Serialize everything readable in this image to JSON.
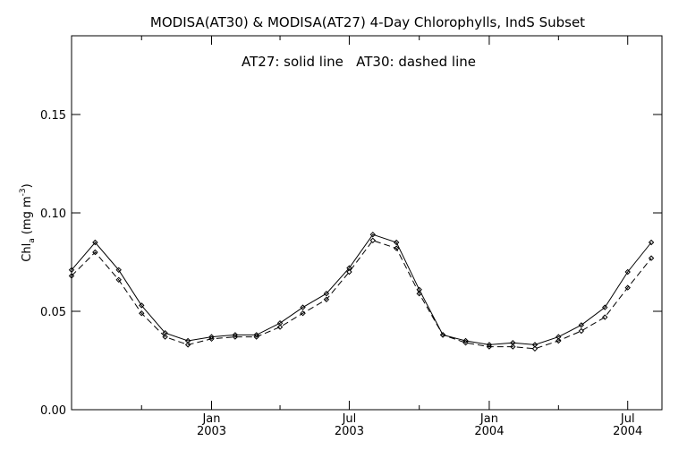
{
  "chart_data": {
    "type": "line",
    "title": "MODISA(AT30) & MODISA(AT27) 4-Day Chlorophylls, IndS Subset",
    "annotation": "AT27: solid line   AT30: dashed line",
    "ylabel": {
      "main": "Chl",
      "sub": "a",
      "unit_open": " (mg m",
      "sup": "-3",
      "unit_close": ")"
    },
    "ylim": [
      0.0,
      0.19
    ],
    "ytick_values": [
      0.0,
      0.05,
      0.1,
      0.15
    ],
    "ytick_labels": [
      "0.00",
      "0.05",
      "0.10",
      "0.15"
    ],
    "xlim": [
      "2002-07-01",
      "2004-08-15"
    ],
    "xticks": [
      {
        "date": "2003-01-01",
        "month": "Jan",
        "year": "2003"
      },
      {
        "date": "2003-07-01",
        "month": "Jul",
        "year": "2003"
      },
      {
        "date": "2004-01-01",
        "month": "Jan",
        "year": "2004"
      },
      {
        "date": "2004-07-01",
        "month": "Jul",
        "year": "2004"
      }
    ],
    "minor_xticks": [
      "2002-10-01",
      "2003-04-01",
      "2003-10-01",
      "2004-04-01"
    ],
    "grid": false,
    "legend": "none",
    "series": [
      {
        "name": "AT27",
        "style": "solid",
        "points": [
          [
            "2002-07-01",
            0.071
          ],
          [
            "2002-08-01",
            0.085
          ],
          [
            "2002-09-01",
            0.071
          ],
          [
            "2002-10-01",
            0.053
          ],
          [
            "2002-11-01",
            0.039
          ],
          [
            "2002-12-01",
            0.035
          ],
          [
            "2003-01-01",
            0.037
          ],
          [
            "2003-02-01",
            0.038
          ],
          [
            "2003-03-01",
            0.038
          ],
          [
            "2003-04-01",
            0.044
          ],
          [
            "2003-05-01",
            0.052
          ],
          [
            "2003-06-01",
            0.059
          ],
          [
            "2003-07-01",
            0.072
          ],
          [
            "2003-08-01",
            0.089
          ],
          [
            "2003-09-01",
            0.085
          ],
          [
            "2003-10-01",
            0.061
          ],
          [
            "2003-11-01",
            0.038
          ],
          [
            "2003-12-01",
            0.035
          ],
          [
            "2004-01-01",
            0.033
          ],
          [
            "2004-02-01",
            0.034
          ],
          [
            "2004-03-01",
            0.033
          ],
          [
            "2004-04-01",
            0.037
          ],
          [
            "2004-05-01",
            0.043
          ],
          [
            "2004-06-01",
            0.052
          ],
          [
            "2004-07-01",
            0.07
          ],
          [
            "2004-08-01",
            0.085
          ]
        ]
      },
      {
        "name": "AT30",
        "style": "dashed",
        "points": [
          [
            "2002-07-01",
            0.068
          ],
          [
            "2002-08-01",
            0.08
          ],
          [
            "2002-09-01",
            0.066
          ],
          [
            "2002-10-01",
            0.049
          ],
          [
            "2002-11-01",
            0.037
          ],
          [
            "2002-12-01",
            0.033
          ],
          [
            "2003-01-01",
            0.036
          ],
          [
            "2003-02-01",
            0.037
          ],
          [
            "2003-03-01",
            0.037
          ],
          [
            "2003-04-01",
            0.042
          ],
          [
            "2003-05-01",
            0.049
          ],
          [
            "2003-06-01",
            0.056
          ],
          [
            "2003-07-01",
            0.07
          ],
          [
            "2003-08-01",
            0.086
          ],
          [
            "2003-09-01",
            0.082
          ],
          [
            "2003-10-01",
            0.059
          ],
          [
            "2003-11-01",
            0.038
          ],
          [
            "2003-12-01",
            0.034
          ],
          [
            "2004-01-01",
            0.032
          ],
          [
            "2004-02-01",
            0.032
          ],
          [
            "2004-03-01",
            0.031
          ],
          [
            "2004-04-01",
            0.035
          ],
          [
            "2004-05-01",
            0.04
          ],
          [
            "2004-06-01",
            0.047
          ],
          [
            "2004-07-01",
            0.062
          ],
          [
            "2004-08-01",
            0.077
          ]
        ]
      }
    ]
  }
}
